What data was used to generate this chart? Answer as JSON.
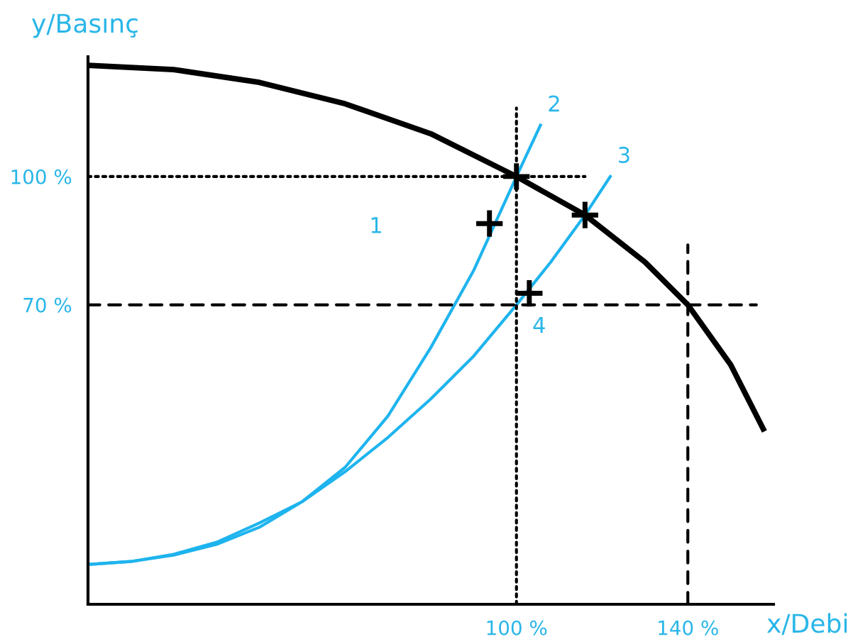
{
  "chart_data": {
    "type": "line",
    "ylabel": "y/Basınç",
    "xlabel": "x/Debi",
    "xlim": [
      0,
      160
    ],
    "ylim": [
      0,
      128
    ],
    "xticks": [
      {
        "value": 100,
        "label": "100 %"
      },
      {
        "value": 140,
        "label": "140 %"
      }
    ],
    "yticks": [
      {
        "value": 70,
        "label": "70 %"
      },
      {
        "value": 100,
        "label": "100 %"
      }
    ],
    "grid": false,
    "legend": false,
    "series": [
      {
        "color": "#000000",
        "x": [
          0,
          20,
          40,
          60,
          80,
          100,
          116,
          130,
          140,
          150,
          157.6
        ],
        "values": [
          126,
          125,
          122,
          117,
          110,
          100,
          91,
          80,
          70,
          56,
          41
        ]
      },
      {
        "name": "2",
        "color": "#1eb4ee",
        "x": [
          0,
          10,
          20,
          30,
          40,
          50,
          60,
          70,
          80,
          90,
          100,
          105.6
        ],
        "values": [
          9.3,
          10,
          11.5,
          14,
          18,
          24,
          32,
          44,
          60,
          78,
          100,
          112
        ]
      },
      {
        "name": "3",
        "color": "#1eb4ee",
        "x": [
          0,
          10,
          20,
          30,
          40,
          50,
          60,
          70,
          80,
          90,
          100,
          108,
          116,
          121.9
        ],
        "values": [
          9.3,
          10,
          11.7,
          14.5,
          19,
          24,
          31,
          39,
          48,
          58,
          70,
          80,
          91,
          100
        ]
      },
      {
        "color": "#000000",
        "line_style": "dotted",
        "x": [
          100,
          100
        ],
        "values": [
          0,
          116
        ]
      },
      {
        "color": "#000000",
        "line_style": "dotted",
        "x": [
          0,
          116
        ],
        "values": [
          100,
          100
        ]
      },
      {
        "color": "#000000",
        "line_style": "dashed",
        "x": [
          0,
          156
        ],
        "values": [
          70,
          70
        ]
      },
      {
        "color": "#000000",
        "line_style": "dashed",
        "x": [
          140,
          140
        ],
        "values": [
          0,
          84
        ]
      },
      {
        "type": "scatter",
        "color": "#000000",
        "marker": "cross",
        "x": [
          93.7
        ],
        "values": [
          89
        ]
      },
      {
        "type": "scatter",
        "color": "#000000",
        "marker": "cross",
        "x": [
          100,
          116
        ],
        "values": [
          100,
          91
        ]
      },
      {
        "type": "scatter",
        "name": "4",
        "color": "#000000",
        "marker": "cross",
        "x": [
          103
        ],
        "values": [
          72.7
        ]
      }
    ],
    "annotations": [
      "1"
    ]
  }
}
